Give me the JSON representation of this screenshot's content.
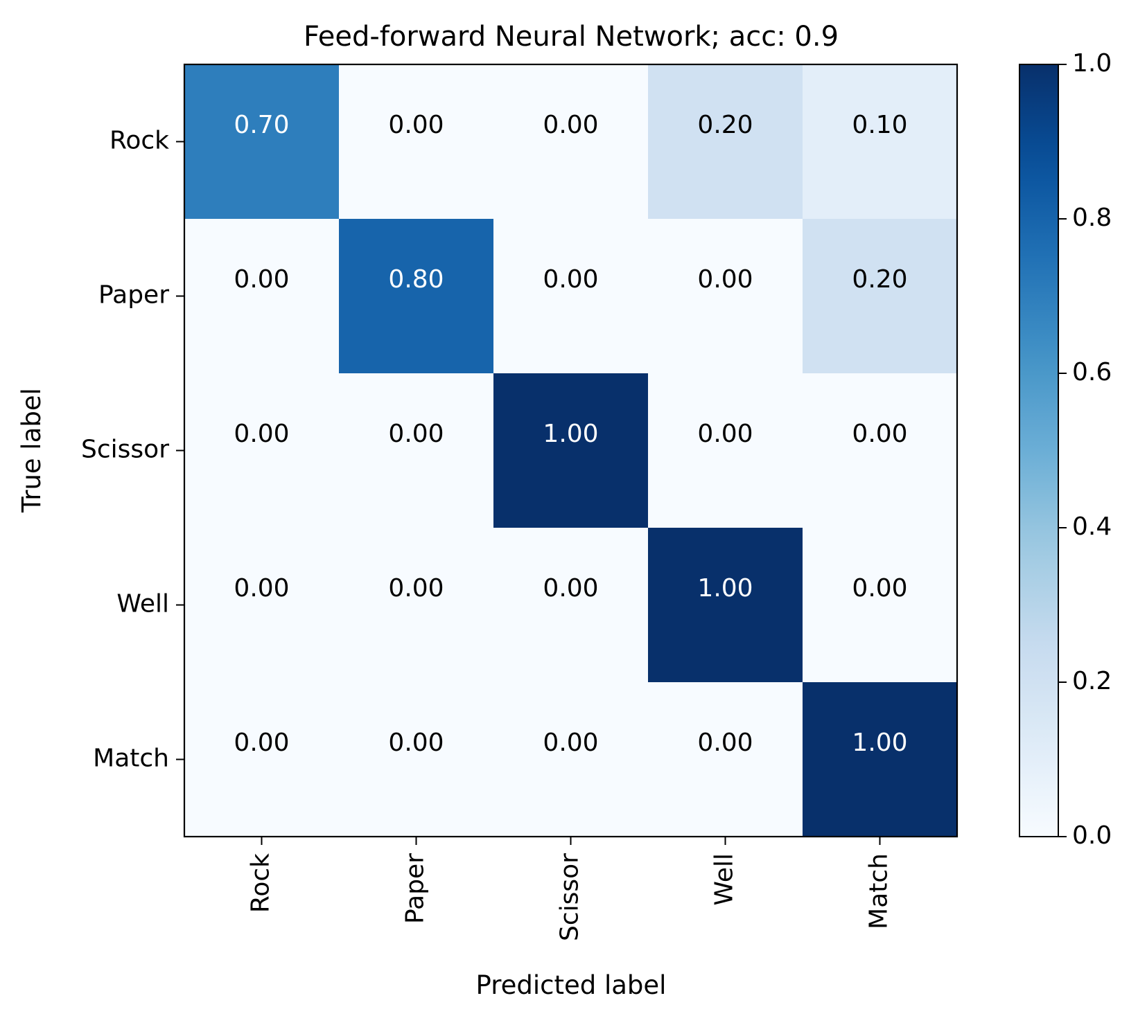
{
  "chart_data": {
    "type": "heatmap",
    "title": "Feed-forward Neural Network; acc: 0.9",
    "xlabel": "Predicted label",
    "ylabel": "True label",
    "x_categories": [
      "Rock",
      "Paper",
      "Scissor",
      "Well",
      "Match"
    ],
    "y_categories": [
      "Rock",
      "Paper",
      "Scissor",
      "Well",
      "Match"
    ],
    "matrix": [
      [
        0.7,
        0.0,
        0.0,
        0.2,
        0.1
      ],
      [
        0.0,
        0.8,
        0.0,
        0.0,
        0.2
      ],
      [
        0.0,
        0.0,
        1.0,
        0.0,
        0.0
      ],
      [
        0.0,
        0.0,
        0.0,
        1.0,
        0.0
      ],
      [
        0.0,
        0.0,
        0.0,
        0.0,
        1.0
      ]
    ],
    "cell_labels": [
      [
        "0.70",
        "0.00",
        "0.00",
        "0.20",
        "0.10"
      ],
      [
        "0.00",
        "0.80",
        "0.00",
        "0.00",
        "0.20"
      ],
      [
        "0.00",
        "0.00",
        "1.00",
        "0.00",
        "0.00"
      ],
      [
        "0.00",
        "0.00",
        "0.00",
        "1.00",
        "0.00"
      ],
      [
        "0.00",
        "0.00",
        "0.00",
        "0.00",
        "1.00"
      ]
    ],
    "colormap": "Blues",
    "colorbar": {
      "range": [
        0.0,
        1.0
      ],
      "ticks": [
        0.0,
        0.2,
        0.4,
        0.6,
        0.8,
        1.0
      ],
      "tick_labels": [
        "0.0",
        "0.2",
        "0.4",
        "0.6",
        "0.8",
        "1.0"
      ]
    },
    "grid": false
  }
}
